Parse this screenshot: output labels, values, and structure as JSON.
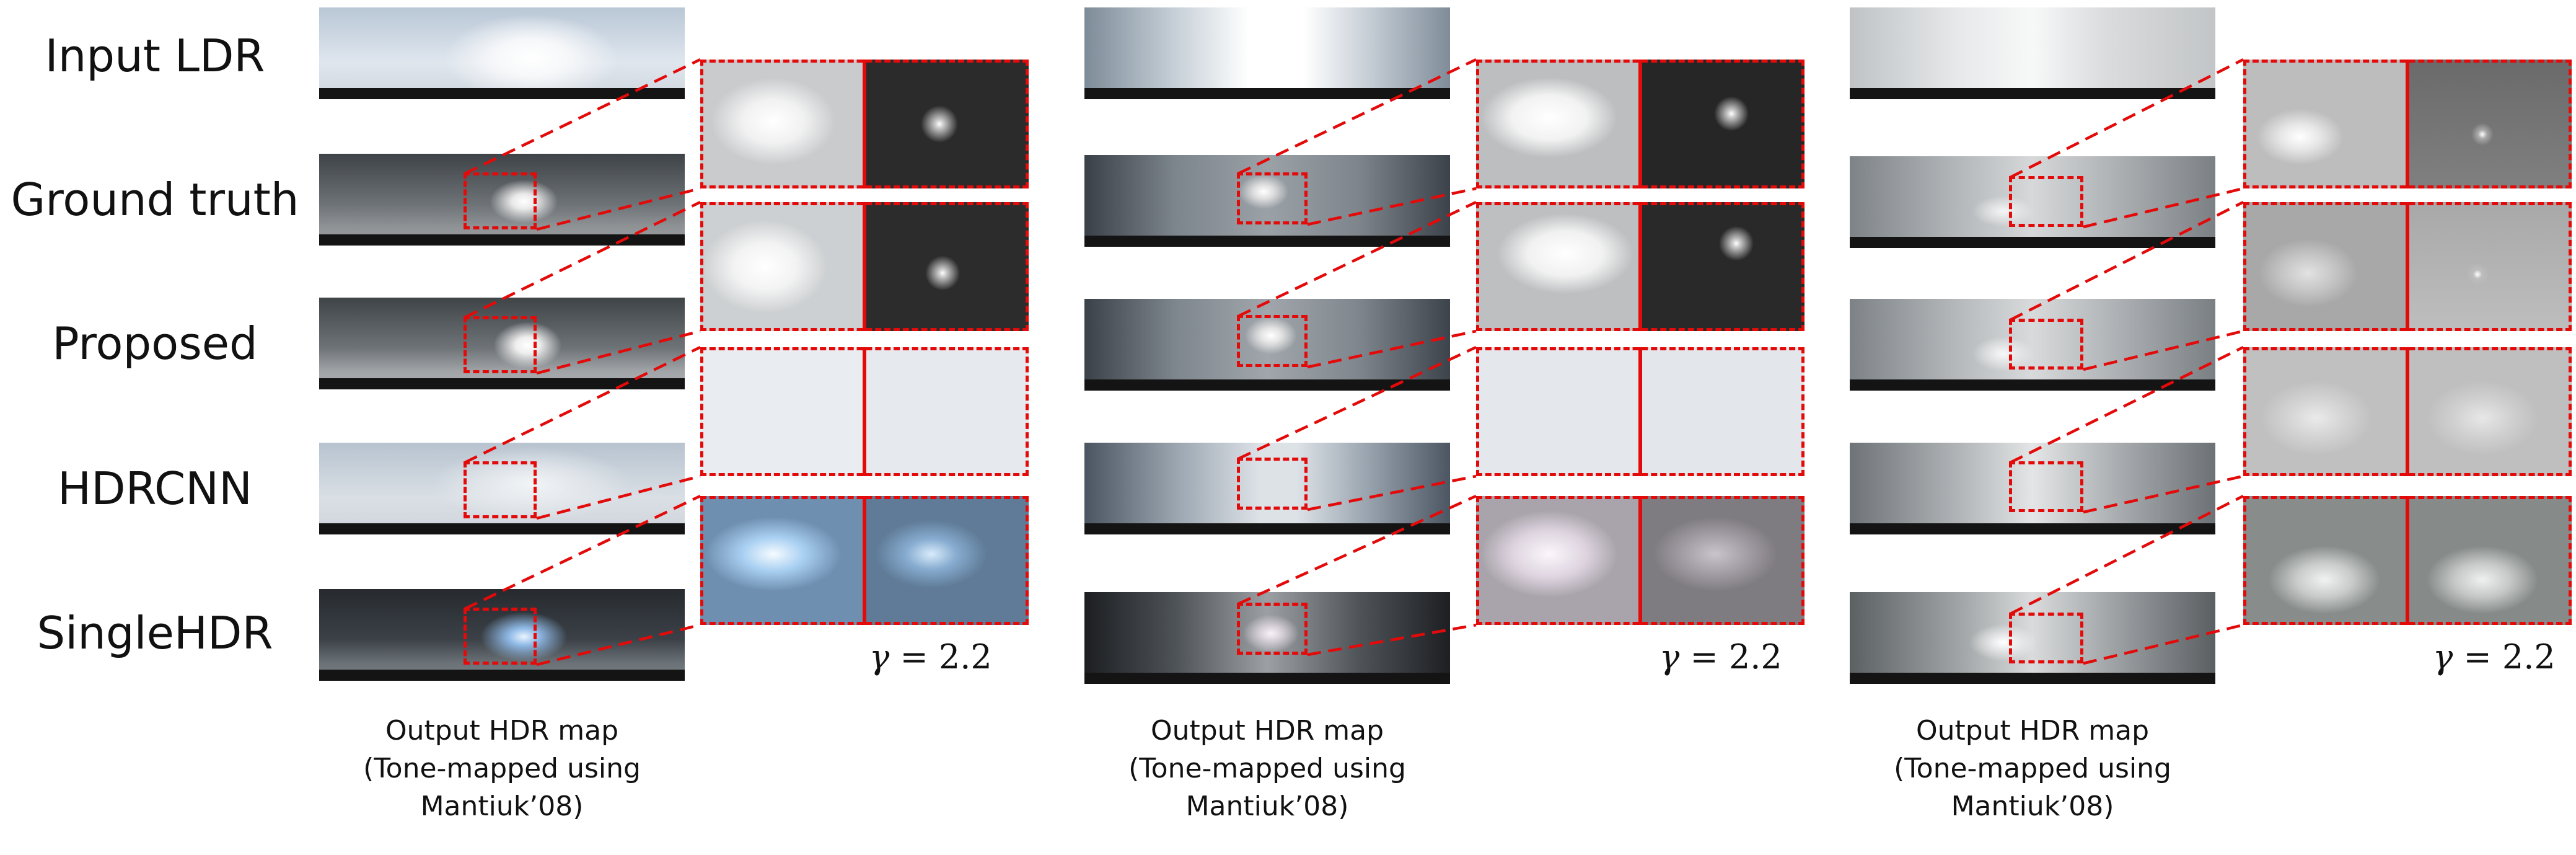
{
  "row_labels": {
    "input": "Input LDR",
    "gt": "Ground truth",
    "proposed": "Proposed",
    "hdrcnn": "HDRCNN",
    "singlehdr": "SingleHDR"
  },
  "gamma_label": "= 2.2",
  "gamma_symbol": "γ",
  "caption": {
    "line1": "Output HDR map",
    "line2": "(Tone-mapped using",
    "line3": "Mantiuk’08)"
  }
}
